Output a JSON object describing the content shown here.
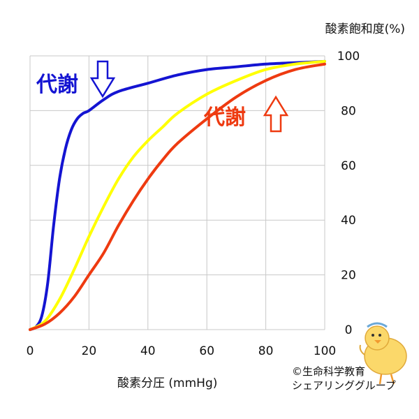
{
  "chart_data": {
    "type": "line",
    "xlabel": "酸素分圧 (mmHg)",
    "ylabel": "酸素飽和度(%)",
    "xlim": [
      0,
      100
    ],
    "ylim": [
      0,
      100
    ],
    "x_ticks": [
      "0",
      "20",
      "40",
      "60",
      "80",
      "100"
    ],
    "y_ticks": [
      "0",
      "20",
      "40",
      "60",
      "80",
      "100"
    ],
    "grid": true,
    "y_axis_side": "right",
    "colors": {
      "low": "#1414d2",
      "normal": "#ffff00",
      "high": "#ee3a10"
    },
    "series": [
      {
        "key": "low",
        "x": [
          0,
          2,
          4,
          6,
          8,
          10,
          12,
          14,
          16,
          18,
          20,
          25,
          30,
          40,
          50,
          60,
          70,
          80,
          90,
          100
        ],
        "values": [
          0,
          1,
          5,
          17,
          38,
          55,
          66,
          73,
          77,
          79,
          80,
          84,
          87,
          90,
          93,
          95,
          96,
          97,
          97.5,
          98
        ]
      },
      {
        "key": "normal",
        "x": [
          0,
          5,
          10,
          15,
          20,
          25,
          30,
          35,
          40,
          45,
          50,
          60,
          70,
          80,
          90,
          100
        ],
        "values": [
          0,
          3,
          11,
          22,
          34,
          45,
          55,
          63,
          69,
          74,
          79,
          86,
          91,
          95,
          97,
          98
        ]
      },
      {
        "key": "high",
        "x": [
          0,
          5,
          10,
          15,
          20,
          25,
          30,
          35,
          40,
          45,
          50,
          60,
          70,
          80,
          90,
          100
        ],
        "values": [
          0,
          2,
          6,
          12,
          20,
          28,
          38,
          47,
          55,
          62,
          68,
          77,
          85,
          91,
          95,
          97
        ]
      }
    ],
    "annotations": {
      "low": {
        "text": "代謝",
        "arrow": "down"
      },
      "high": {
        "text": "代謝",
        "arrow": "up"
      }
    }
  },
  "credit": {
    "line1": "©生命科学教育",
    "line2": "シェアリンググループ"
  }
}
